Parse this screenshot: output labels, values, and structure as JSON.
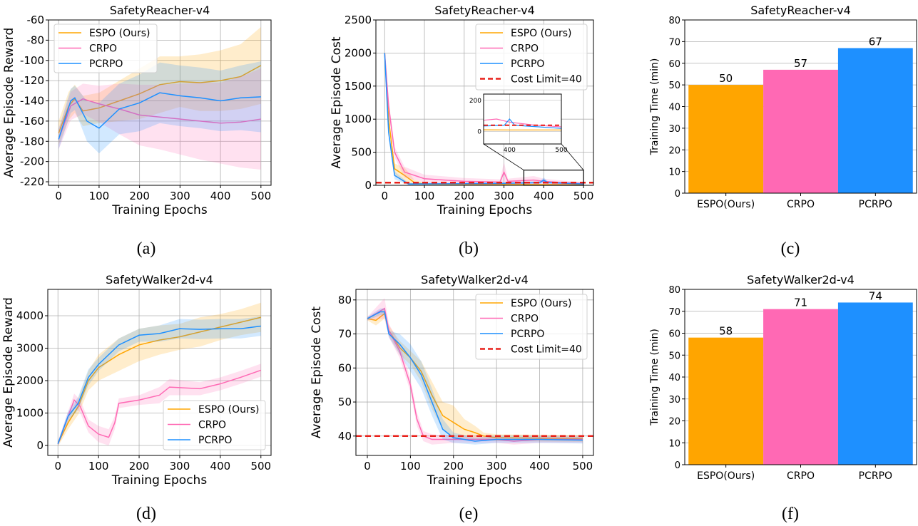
{
  "colors": {
    "ESPO": "#FFA500",
    "CRPO": "#FF69B4",
    "PCRPO": "#1E90FF",
    "cost_limit": "#E8201A"
  },
  "chart_data": [
    {
      "id": "a",
      "caption": "(a)",
      "type": "line",
      "title": "SafetyReacher-v4",
      "xlabel": "Training Epochs",
      "ylabel": "Average Episode Reward",
      "xlim": [
        -25,
        525
      ],
      "ylim": [
        -223.5,
        -60
      ],
      "xticks": [
        0,
        100,
        200,
        300,
        400,
        500
      ],
      "yticks": [
        -220,
        -200,
        -180,
        -160,
        -140,
        -120,
        -100,
        -80,
        -60
      ],
      "grid": true,
      "legend": "top-left",
      "series": [
        {
          "name": "ESPO (Ours)",
          "key": "ESPO",
          "x": [
            0,
            25,
            40,
            60,
            100,
            150,
            200,
            250,
            300,
            350,
            400,
            450,
            500
          ],
          "y": [
            -172,
            -145,
            -138,
            -150,
            -147,
            -140,
            -133,
            -124,
            -121,
            -122,
            -120,
            -116,
            -105
          ],
          "band": [
            12,
            14,
            14,
            15,
            15,
            20,
            25,
            28,
            25,
            28,
            30,
            32,
            38
          ]
        },
        {
          "name": "CRPO",
          "key": "CRPO",
          "x": [
            0,
            30,
            60,
            100,
            150,
            200,
            250,
            300,
            350,
            400,
            450,
            500
          ],
          "y": [
            -178,
            -145,
            -138,
            -143,
            -148,
            -154,
            -156,
            -158,
            -160,
            -162,
            -161,
            -158
          ],
          "band": [
            10,
            14,
            15,
            18,
            25,
            30,
            32,
            35,
            38,
            40,
            45,
            50
          ]
        },
        {
          "name": "PCRPO",
          "key": "PCRPO",
          "x": [
            0,
            30,
            40,
            70,
            100,
            150,
            200,
            250,
            300,
            350,
            400,
            450,
            500
          ],
          "y": [
            -178,
            -140,
            -137,
            -160,
            -167,
            -148,
            -142,
            -132,
            -135,
            -137,
            -140,
            -137,
            -136
          ],
          "band": [
            10,
            12,
            12,
            20,
            25,
            25,
            28,
            30,
            30,
            30,
            30,
            32,
            35
          ]
        }
      ]
    },
    {
      "id": "b",
      "caption": "(b)",
      "type": "line",
      "title": "SafetyReacher-v4",
      "xlabel": "Training Epochs",
      "ylabel": "Average Episode Cost",
      "xlim": [
        -22,
        525
      ],
      "ylim": [
        0,
        2500
      ],
      "xticks": [
        0,
        100,
        200,
        300,
        400,
        500
      ],
      "yticks": [
        0,
        500,
        1000,
        1500,
        2000,
        2500
      ],
      "grid": true,
      "legend": "top-right",
      "series": [
        {
          "name": "ESPO (Ours)",
          "key": "ESPO",
          "x": [
            0,
            10,
            25,
            50,
            75,
            100,
            200,
            300,
            400,
            500
          ],
          "y": [
            2000,
            1000,
            250,
            150,
            40,
            20,
            15,
            12,
            10,
            10
          ],
          "band": [
            20,
            60,
            80,
            120,
            40,
            20,
            10,
            10,
            10,
            10
          ]
        },
        {
          "name": "CRPO",
          "key": "CRPO",
          "x": [
            0,
            10,
            25,
            50,
            100,
            200,
            290,
            300,
            310,
            375,
            400,
            450,
            500
          ],
          "y": [
            2000,
            1200,
            500,
            200,
            100,
            60,
            50,
            200,
            60,
            80,
            60,
            40,
            30
          ],
          "band": [
            20,
            100,
            80,
            80,
            60,
            50,
            40,
            150,
            40,
            60,
            40,
            30,
            20
          ]
        },
        {
          "name": "PCRPO",
          "key": "PCRPO",
          "x": [
            0,
            10,
            25,
            60,
            200,
            300,
            390,
            400,
            410,
            500
          ],
          "y": [
            2000,
            800,
            150,
            20,
            25,
            30,
            40,
            80,
            40,
            20
          ],
          "band": [
            20,
            60,
            60,
            15,
            15,
            20,
            20,
            40,
            20,
            15
          ]
        }
      ],
      "hline": {
        "name": "Cost Limit=40",
        "y": 40
      },
      "inset": {
        "xlim": [
          350,
          500
        ],
        "ylim": [
          -80,
          240
        ],
        "xticks": [
          400,
          500
        ],
        "yticks": [
          0,
          200
        ]
      }
    },
    {
      "id": "c",
      "caption": "(c)",
      "type": "bar",
      "title": "SafetyReacher-v4",
      "ylabel": "Training Time (min)",
      "categories": [
        "ESPO(Ours)",
        "CRPO",
        "PCRPO"
      ],
      "keys": [
        "ESPO",
        "CRPO",
        "PCRPO"
      ],
      "values": [
        50,
        57,
        67
      ],
      "ylim": [
        0,
        80
      ],
      "yticks": [
        0,
        10,
        20,
        30,
        40,
        50,
        60,
        70,
        80
      ],
      "grid": true
    },
    {
      "id": "d",
      "caption": "(d)",
      "type": "line",
      "title": "SafetyWalker2d-v4",
      "xlabel": "Training Epochs",
      "ylabel": "Average Episode Reward",
      "xlim": [
        -25,
        525
      ],
      "ylim": [
        -308,
        4813
      ],
      "xticks": [
        0,
        100,
        200,
        300,
        400,
        500
      ],
      "yticks": [
        0,
        1000,
        2000,
        3000,
        4000
      ],
      "grid": true,
      "legend": "bottom-right",
      "series": [
        {
          "name": "ESPO (Ours)",
          "key": "ESPO",
          "x": [
            0,
            25,
            50,
            75,
            100,
            150,
            200,
            250,
            300,
            350,
            400,
            450,
            500
          ],
          "y": [
            50,
            700,
            1200,
            2000,
            2400,
            2800,
            3100,
            3250,
            3350,
            3500,
            3650,
            3800,
            3950
          ],
          "band": [
            80,
            200,
            250,
            300,
            400,
            500,
            500,
            450,
            400,
            450,
            400,
            400,
            450
          ]
        },
        {
          "name": "CRPO",
          "key": "CRPO",
          "x": [
            0,
            25,
            40,
            55,
            75,
            100,
            125,
            140,
            150,
            200,
            250,
            275,
            350,
            400,
            450,
            500
          ],
          "y": [
            50,
            900,
            1400,
            1200,
            600,
            350,
            250,
            700,
            1300,
            1400,
            1550,
            1800,
            1750,
            1900,
            2100,
            2320
          ],
          "band": [
            80,
            150,
            200,
            200,
            200,
            250,
            250,
            200,
            150,
            150,
            250,
            250,
            200,
            200,
            200,
            200
          ]
        },
        {
          "name": "PCRPO",
          "key": "PCRPO",
          "x": [
            0,
            25,
            50,
            75,
            100,
            150,
            200,
            250,
            300,
            350,
            400,
            450,
            500
          ],
          "y": [
            50,
            900,
            1300,
            2100,
            2500,
            3100,
            3400,
            3450,
            3600,
            3580,
            3600,
            3600,
            3680
          ],
          "band": [
            60,
            150,
            200,
            250,
            200,
            200,
            200,
            250,
            300,
            300,
            300,
            300,
            300
          ]
        }
      ]
    },
    {
      "id": "e",
      "caption": "(e)",
      "type": "line",
      "title": "SafetyWalker2d-v4",
      "xlabel": "Training Epochs",
      "ylabel": "Average Episode Cost",
      "xlim": [
        -26.5,
        525
      ],
      "ylim": [
        34.3,
        83.1
      ],
      "xticks": [
        0,
        100,
        200,
        300,
        400,
        500
      ],
      "yticks": [
        40,
        50,
        60,
        70,
        80
      ],
      "grid": true,
      "legend": "top-right",
      "series": [
        {
          "name": "ESPO (Ours)",
          "key": "ESPO",
          "x": [
            0,
            20,
            40,
            50,
            75,
            100,
            125,
            150,
            175,
            200,
            225,
            250,
            270,
            300,
            500
          ],
          "y": [
            74.5,
            74,
            76,
            71,
            66,
            63,
            59,
            52,
            46,
            44,
            42,
            41,
            40,
            39.5,
            39.3
          ],
          "band": [
            0.5,
            1.5,
            1.5,
            1.5,
            2,
            2,
            3,
            4,
            4,
            5,
            3,
            2,
            1,
            1,
            1
          ]
        },
        {
          "name": "CRPO",
          "key": "CRPO",
          "x": [
            0,
            40,
            50,
            75,
            100,
            115,
            130,
            150,
            200,
            300,
            340,
            400,
            500
          ],
          "y": [
            74.5,
            77.5,
            71,
            65,
            55,
            45,
            40,
            39,
            39,
            39,
            38.5,
            39,
            39
          ],
          "band": [
            0.5,
            3,
            2,
            2,
            2,
            2,
            1.5,
            1.5,
            1,
            1,
            1,
            1,
            1
          ]
        },
        {
          "name": "PCRPO",
          "key": "PCRPO",
          "x": [
            0,
            30,
            40,
            50,
            75,
            100,
            125,
            150,
            175,
            200,
            250,
            300,
            400,
            500
          ],
          "y": [
            74.5,
            76.5,
            76.5,
            70,
            67,
            63,
            58,
            50,
            42,
            39.5,
            38.5,
            39,
            39,
            38.8
          ],
          "band": [
            0.5,
            1,
            1,
            1,
            3,
            4,
            4,
            4,
            3,
            1.5,
            1,
            1,
            1,
            1
          ]
        }
      ],
      "hline": {
        "name": "Cost Limit=40",
        "y": 40
      }
    },
    {
      "id": "f",
      "caption": "(f)",
      "type": "bar",
      "title": "SafetyWalker2d-v4",
      "ylabel": "Training Time (min)",
      "categories": [
        "ESPO(Ours)",
        "CRPO",
        "PCRPO"
      ],
      "keys": [
        "ESPO",
        "CRPO",
        "PCRPO"
      ],
      "values": [
        58,
        71,
        74
      ],
      "ylim": [
        0,
        80
      ],
      "yticks": [
        0,
        10,
        20,
        30,
        40,
        50,
        60,
        70,
        80
      ],
      "grid": true
    }
  ]
}
